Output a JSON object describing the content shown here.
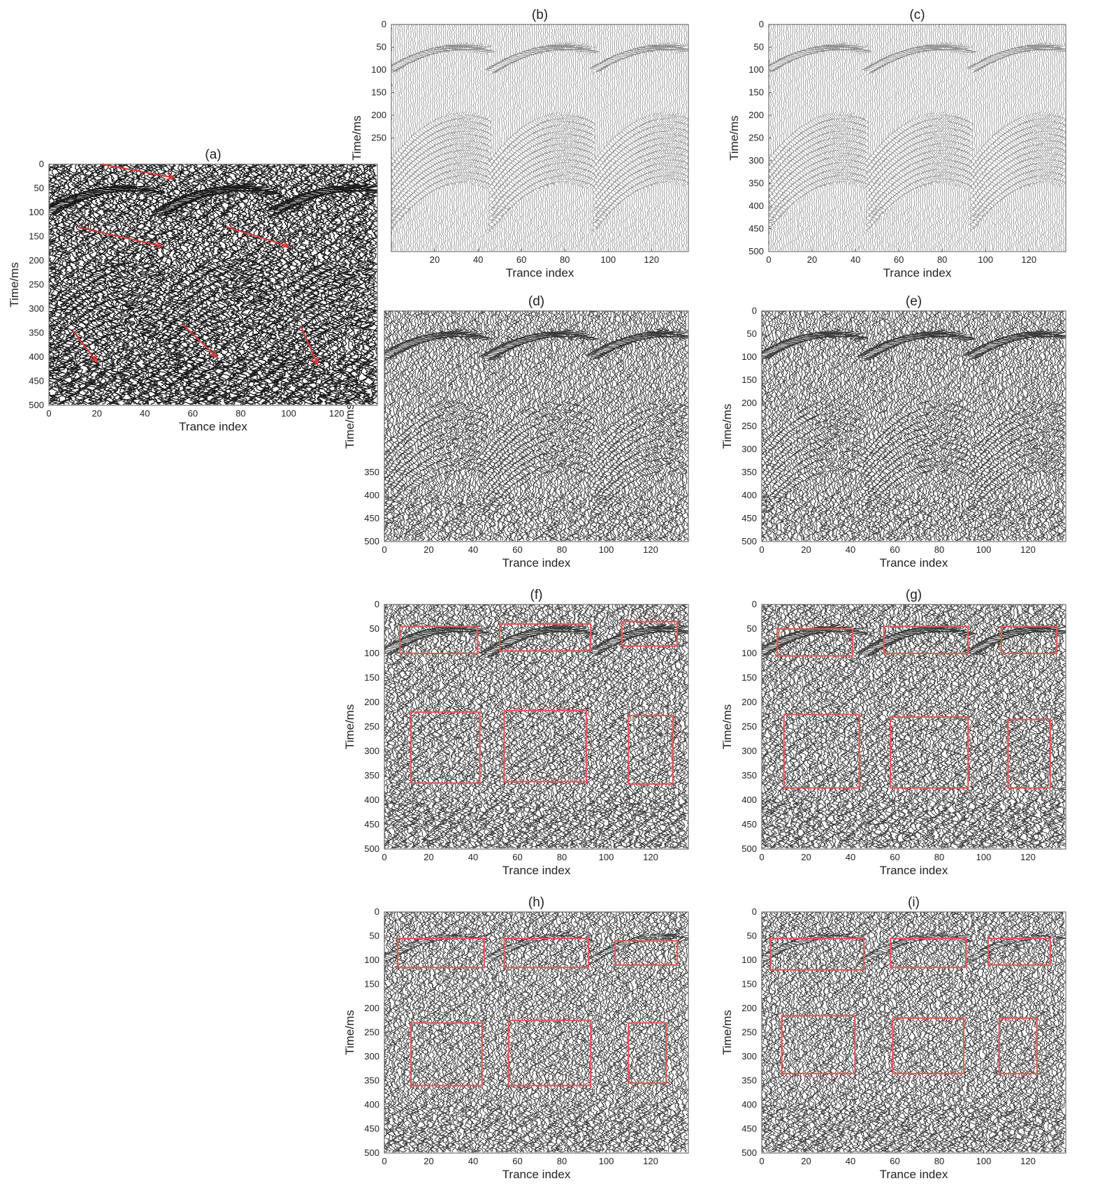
{
  "chart_data": [
    {
      "id": "a",
      "type": "heatmap",
      "title": "(a)",
      "xlabel": "Trance index",
      "ylabel": "Time/ms",
      "xlim": [
        0,
        137
      ],
      "ylim": [
        0,
        500
      ],
      "xticks": [
        "0",
        "20",
        "40",
        "60",
        "80",
        "100",
        "120"
      ],
      "yticks": [
        "0",
        "50",
        "100",
        "150",
        "200",
        "250",
        "300",
        "350",
        "400",
        "450",
        "500"
      ],
      "style": "heavy",
      "annotations": {
        "arrows": [
          {
            "from": [
              22,
              0
            ],
            "to": [
              52,
              28
            ]
          },
          {
            "from": [
              12,
              130
            ],
            "to": [
              47,
              170
            ]
          },
          {
            "from": [
              74,
              130
            ],
            "to": [
              100,
              170
            ]
          },
          {
            "from": [
              10,
              345
            ],
            "to": [
              20,
              410
            ]
          },
          {
            "from": [
              56,
              333
            ],
            "to": [
              70,
              400
            ]
          },
          {
            "from": [
              105,
              335
            ],
            "to": [
              112,
              415
            ]
          }
        ]
      }
    },
    {
      "id": "b",
      "type": "heatmap",
      "title": "(b)",
      "xlabel": "Trance index",
      "ylabel": "Time/ms",
      "xlim": [
        0,
        137
      ],
      "ylim": [
        0,
        500
      ],
      "xticks": [
        "20",
        "40",
        "60",
        "80",
        "100",
        "120"
      ],
      "yticks": [
        "0",
        "50",
        "100",
        "150",
        "200",
        "250"
      ],
      "style": "light"
    },
    {
      "id": "c",
      "type": "heatmap",
      "title": "(c)",
      "xlabel": "Trance index",
      "ylabel": "Time/ms",
      "xlim": [
        0,
        137
      ],
      "ylim": [
        0,
        500
      ],
      "xticks": [
        "0",
        "20",
        "40",
        "60",
        "80",
        "100",
        "120"
      ],
      "yticks": [
        "0",
        "50",
        "100",
        "150",
        "200",
        "250",
        "300",
        "350",
        "400",
        "450",
        "500"
      ],
      "style": "light"
    },
    {
      "id": "d",
      "type": "heatmap",
      "title": "(d)",
      "xlabel": "Trance index",
      "ylabel": "Time/ms",
      "xlim": [
        0,
        137
      ],
      "ylim": [
        0,
        500
      ],
      "xticks": [
        "0",
        "20",
        "40",
        "60",
        "80",
        "100",
        "120"
      ],
      "yticks": [
        "350",
        "400",
        "450",
        "500"
      ],
      "style": "dark"
    },
    {
      "id": "e",
      "type": "heatmap",
      "title": "(e)",
      "xlabel": "Trance index",
      "ylabel": "Time/ms",
      "xlim": [
        0,
        137
      ],
      "ylim": [
        0,
        500
      ],
      "xticks": [
        "0",
        "20",
        "40",
        "60",
        "80",
        "100",
        "120"
      ],
      "yticks": [
        "0",
        "50",
        "100",
        "150",
        "200",
        "250",
        "300",
        "350",
        "400",
        "450",
        "500"
      ],
      "style": "dark"
    },
    {
      "id": "f",
      "type": "heatmap",
      "title": "(f)",
      "xlabel": "Trance index",
      "ylabel": "Time/ms",
      "xlim": [
        0,
        137
      ],
      "ylim": [
        0,
        500
      ],
      "xticks": [
        "0",
        "20",
        "40",
        "60",
        "80",
        "100",
        "120"
      ],
      "yticks": [
        "0",
        "50",
        "100",
        "150",
        "200",
        "250",
        "300",
        "350",
        "400",
        "450",
        "500"
      ],
      "style": "residual",
      "annotations": {
        "boxes": [
          {
            "x": [
              7,
              42
            ],
            "y": [
              45,
              100
            ]
          },
          {
            "x": [
              52,
              93
            ],
            "y": [
              40,
              95
            ]
          },
          {
            "x": [
              107,
              132
            ],
            "y": [
              35,
              85
            ]
          },
          {
            "x": [
              12,
              43
            ],
            "y": [
              220,
              365
            ]
          },
          {
            "x": [
              54,
              91
            ],
            "y": [
              217,
              362
            ]
          },
          {
            "x": [
              110,
              130
            ],
            "y": [
              227,
              367
            ]
          }
        ]
      }
    },
    {
      "id": "g",
      "type": "heatmap",
      "title": "(g)",
      "xlabel": "Trance index",
      "ylabel": "Time/ms",
      "xlim": [
        0,
        137
      ],
      "ylim": [
        0,
        500
      ],
      "xticks": [
        "0",
        "20",
        "40",
        "60",
        "80",
        "100",
        "120"
      ],
      "yticks": [
        "0",
        "50",
        "100",
        "150",
        "200",
        "250",
        "300",
        "350",
        "400",
        "450",
        "500"
      ],
      "style": "residual",
      "annotations": {
        "boxes": [
          {
            "x": [
              7,
              41
            ],
            "y": [
              50,
              105
            ]
          },
          {
            "x": [
              55,
              93
            ],
            "y": [
              45,
              100
            ]
          },
          {
            "x": [
              108,
              133
            ],
            "y": [
              45,
              100
            ]
          },
          {
            "x": [
              10,
              44
            ],
            "y": [
              225,
              375
            ]
          },
          {
            "x": [
              58,
              93
            ],
            "y": [
              230,
              375
            ]
          },
          {
            "x": [
              111,
              130
            ],
            "y": [
              235,
              375
            ]
          }
        ]
      }
    },
    {
      "id": "h",
      "type": "heatmap",
      "title": "(h)",
      "xlabel": "Trance index",
      "ylabel": "Time/ms",
      "xlim": [
        0,
        137
      ],
      "ylim": [
        0,
        500
      ],
      "xticks": [
        "0",
        "20",
        "40",
        "60",
        "80",
        "100",
        "120"
      ],
      "yticks": [
        "0",
        "50",
        "100",
        "150",
        "200",
        "250",
        "300",
        "350",
        "400",
        "450",
        "500"
      ],
      "style": "faint",
      "annotations": {
        "boxes": [
          {
            "x": [
              6,
              45
            ],
            "y": [
              55,
              115
            ]
          },
          {
            "x": [
              54,
              92
            ],
            "y": [
              55,
              115
            ]
          },
          {
            "x": [
              104,
              132
            ],
            "y": [
              60,
              110
            ]
          },
          {
            "x": [
              12,
              44
            ],
            "y": [
              230,
              360
            ]
          },
          {
            "x": [
              56,
              93
            ],
            "y": [
              225,
              360
            ]
          },
          {
            "x": [
              110,
              127
            ],
            "y": [
              230,
              355
            ]
          }
        ]
      }
    },
    {
      "id": "i",
      "type": "heatmap",
      "title": "(i)",
      "xlabel": "Trance index",
      "ylabel": "Time/ms",
      "xlim": [
        0,
        137
      ],
      "ylim": [
        0,
        500
      ],
      "xticks": [
        "0",
        "20",
        "40",
        "60",
        "80",
        "100",
        "120"
      ],
      "yticks": [
        "0",
        "50",
        "100",
        "150",
        "200",
        "250",
        "300",
        "350",
        "400",
        "450",
        "500"
      ],
      "style": "faint",
      "annotations": {
        "boxes": [
          {
            "x": [
              4,
              46
            ],
            "y": [
              55,
              120
            ]
          },
          {
            "x": [
              58,
              92
            ],
            "y": [
              55,
              115
            ]
          },
          {
            "x": [
              102,
              130
            ],
            "y": [
              55,
              110
            ]
          },
          {
            "x": [
              9,
              42
            ],
            "y": [
              215,
              335
            ]
          },
          {
            "x": [
              59,
              91
            ],
            "y": [
              220,
              335
            ]
          },
          {
            "x": [
              107,
              124
            ],
            "y": [
              220,
              335
            ]
          }
        ]
      }
    }
  ]
}
